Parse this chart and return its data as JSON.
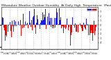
{
  "background_color": "#ffffff",
  "bar_color_positive": "#1a1aff",
  "bar_color_negative": "#ff0000",
  "num_points": 365,
  "seed": 42,
  "ylim": [
    -5.5,
    4.0
  ],
  "grid_color": "#aaaaaa",
  "title_fontsize": 3.2,
  "tick_fontsize": 2.5,
  "right_yticks": [
    -4,
    -3,
    -2,
    -1,
    0,
    1,
    2,
    3
  ],
  "right_yticklabels": [
    "-4",
    "-3",
    "-2",
    "-1",
    "0",
    "1",
    "2",
    "3"
  ],
  "month_tick_positions": [
    0,
    31,
    59,
    90,
    120,
    151,
    181,
    212,
    243,
    273,
    304,
    334
  ],
  "title_text": "Milwaukee Weather Outdoor Humidity  At Daily High  Temperature  (Past Year)"
}
